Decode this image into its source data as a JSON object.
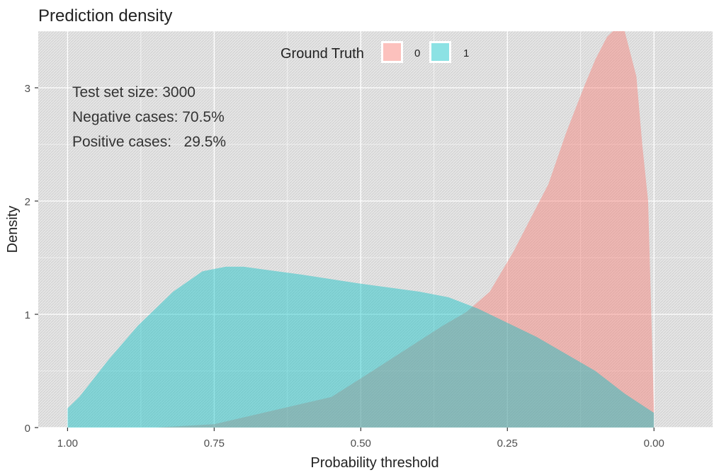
{
  "chart_data": {
    "type": "area",
    "title": "Prediction density",
    "xlabel": "Probability threshold",
    "ylabel": "Density",
    "x_reversed": true,
    "xlim": [
      1.05,
      -0.1
    ],
    "ylim": [
      0,
      3.5
    ],
    "x_ticks": [
      1.0,
      0.75,
      0.5,
      0.25,
      0.0
    ],
    "x_tick_labels": [
      "1.00",
      "0.75",
      "0.50",
      "0.25",
      "0.00"
    ],
    "y_ticks": [
      0,
      1,
      2,
      3
    ],
    "y_tick_labels": [
      "0",
      "1",
      "2",
      "3"
    ],
    "grid": true,
    "legend": {
      "title": "Ground Truth",
      "position": "top",
      "entries": [
        {
          "label": "0",
          "color": "#f8766d"
        },
        {
          "label": "1",
          "color": "#00bfc4"
        }
      ]
    },
    "annotations": [
      "Test set size: 3000",
      "Negative cases: 70.5%",
      "Positive cases:   29.5%"
    ],
    "series": [
      {
        "name": "0",
        "color": "#f8766d",
        "x": [
          0.85,
          0.75,
          0.65,
          0.55,
          0.48,
          0.42,
          0.36,
          0.32,
          0.28,
          0.24,
          0.2,
          0.18,
          0.15,
          0.12,
          0.1,
          0.08,
          0.06,
          0.05,
          0.03,
          0.02,
          0.01,
          0.0
        ],
        "y": [
          0.0,
          0.03,
          0.15,
          0.27,
          0.5,
          0.7,
          0.9,
          1.02,
          1.2,
          1.55,
          1.95,
          2.15,
          2.6,
          3.0,
          3.25,
          3.45,
          3.55,
          3.5,
          3.1,
          2.5,
          2.0,
          0.15
        ]
      },
      {
        "name": "1",
        "color": "#00bfc4",
        "x": [
          1.0,
          0.98,
          0.93,
          0.88,
          0.82,
          0.77,
          0.73,
          0.7,
          0.6,
          0.5,
          0.4,
          0.35,
          0.3,
          0.2,
          0.1,
          0.05,
          0.0
        ],
        "y": [
          0.17,
          0.27,
          0.6,
          0.9,
          1.2,
          1.38,
          1.42,
          1.42,
          1.35,
          1.27,
          1.2,
          1.15,
          1.05,
          0.8,
          0.5,
          0.3,
          0.13
        ]
      }
    ]
  }
}
